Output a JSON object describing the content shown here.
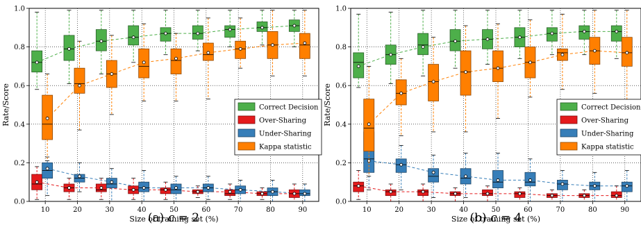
{
  "colors": {
    "correct": "#4daf4a",
    "over": "#e41a1c",
    "under": "#377eb8",
    "kappa": "#ff7f00"
  },
  "chart_data": [
    {
      "type": "box",
      "caption": "(a) c = 2",
      "caption_text": "(a)",
      "caption_var": "c",
      "caption_val": "= 2",
      "xlabel": "Size of training set (%)",
      "ylabel": "Rate/Score",
      "categories": [
        "10",
        "20",
        "30",
        "40",
        "50",
        "60",
        "70",
        "80",
        "90"
      ],
      "yticks": [
        "0.0",
        "0.2",
        "0.4",
        "0.6",
        "0.8",
        "1.0"
      ],
      "ylim": [
        0,
        1
      ],
      "grid": true,
      "legend": "right",
      "series": [
        {
          "key": "correct",
          "name": "Correct Decision",
          "boxes": [
            {
              "q1": 0.67,
              "med": 0.72,
              "q3": 0.78,
              "mean": 0.72,
              "wlo": 0.58,
              "whi": 0.98
            },
            {
              "q1": 0.73,
              "med": 0.79,
              "q3": 0.86,
              "mean": 0.79,
              "wlo": 0.61,
              "whi": 0.99
            },
            {
              "q1": 0.78,
              "med": 0.83,
              "q3": 0.89,
              "mean": 0.83,
              "wlo": 0.66,
              "whi": 0.99
            },
            {
              "q1": 0.81,
              "med": 0.85,
              "q3": 0.91,
              "mean": 0.85,
              "wlo": 0.72,
              "whi": 0.99
            },
            {
              "q1": 0.83,
              "med": 0.87,
              "q3": 0.9,
              "mean": 0.87,
              "wlo": 0.76,
              "whi": 0.99
            },
            {
              "q1": 0.84,
              "med": 0.87,
              "q3": 0.91,
              "mean": 0.87,
              "wlo": 0.78,
              "whi": 0.99
            },
            {
              "q1": 0.85,
              "med": 0.89,
              "q3": 0.91,
              "mean": 0.89,
              "wlo": 0.8,
              "whi": 0.99
            },
            {
              "q1": 0.88,
              "med": 0.9,
              "q3": 0.93,
              "mean": 0.9,
              "wlo": 0.81,
              "whi": 0.99
            },
            {
              "q1": 0.88,
              "med": 0.91,
              "q3": 0.94,
              "mean": 0.91,
              "wlo": 0.8,
              "whi": 0.99
            }
          ]
        },
        {
          "key": "over",
          "name": "Over-Sharing",
          "boxes": [
            {
              "q1": 0.06,
              "med": 0.09,
              "q3": 0.14,
              "mean": 0.1,
              "wlo": 0.01,
              "whi": 0.18
            },
            {
              "q1": 0.05,
              "med": 0.07,
              "q3": 0.09,
              "mean": 0.07,
              "wlo": 0.01,
              "whi": 0.12
            },
            {
              "q1": 0.05,
              "med": 0.06,
              "q3": 0.09,
              "mean": 0.07,
              "wlo": 0.01,
              "whi": 0.12
            },
            {
              "q1": 0.04,
              "med": 0.06,
              "q3": 0.08,
              "mean": 0.06,
              "wlo": 0.01,
              "whi": 0.12
            },
            {
              "q1": 0.04,
              "med": 0.06,
              "q3": 0.07,
              "mean": 0.06,
              "wlo": 0.01,
              "whi": 0.1
            },
            {
              "q1": 0.04,
              "med": 0.05,
              "q3": 0.06,
              "mean": 0.05,
              "wlo": 0.02,
              "whi": 0.08
            },
            {
              "q1": 0.03,
              "med": 0.04,
              "q3": 0.06,
              "mean": 0.05,
              "wlo": 0.01,
              "whi": 0.09
            },
            {
              "q1": 0.03,
              "med": 0.04,
              "q3": 0.05,
              "mean": 0.04,
              "wlo": 0.01,
              "whi": 0.07
            },
            {
              "q1": 0.02,
              "med": 0.04,
              "q3": 0.06,
              "mean": 0.04,
              "wlo": 0.0,
              "whi": 0.09
            }
          ]
        },
        {
          "key": "under",
          "name": "Under-Sharing",
          "boxes": [
            {
              "q1": 0.12,
              "med": 0.16,
              "q3": 0.2,
              "mean": 0.17,
              "wlo": 0.03,
              "whi": 0.23
            },
            {
              "q1": 0.1,
              "med": 0.12,
              "q3": 0.14,
              "mean": 0.13,
              "wlo": 0.05,
              "whi": 0.2
            },
            {
              "q1": 0.07,
              "med": 0.09,
              "q3": 0.12,
              "mean": 0.1,
              "wlo": 0.0,
              "whi": 0.17
            },
            {
              "q1": 0.05,
              "med": 0.07,
              "q3": 0.1,
              "mean": 0.07,
              "wlo": 0.0,
              "whi": 0.16
            },
            {
              "q1": 0.04,
              "med": 0.06,
              "q3": 0.09,
              "mean": 0.07,
              "wlo": 0.0,
              "whi": 0.13
            },
            {
              "q1": 0.05,
              "med": 0.07,
              "q3": 0.09,
              "mean": 0.07,
              "wlo": 0.01,
              "whi": 0.13
            },
            {
              "q1": 0.04,
              "med": 0.06,
              "q3": 0.08,
              "mean": 0.06,
              "wlo": 0.0,
              "whi": 0.11
            },
            {
              "q1": 0.03,
              "med": 0.05,
              "q3": 0.07,
              "mean": 0.05,
              "wlo": 0.0,
              "whi": 0.11
            },
            {
              "q1": 0.03,
              "med": 0.04,
              "q3": 0.06,
              "mean": 0.04,
              "wlo": 0.0,
              "whi": 0.09
            }
          ]
        },
        {
          "key": "kappa",
          "name": "Kappa statistic",
          "boxes": [
            {
              "q1": 0.32,
              "med": 0.4,
              "q3": 0.55,
              "mean": 0.43,
              "wlo": 0.21,
              "whi": 0.66
            },
            {
              "q1": 0.56,
              "med": 0.61,
              "q3": 0.69,
              "mean": 0.6,
              "wlo": 0.37,
              "whi": 0.83
            },
            {
              "q1": 0.59,
              "med": 0.66,
              "q3": 0.73,
              "mean": 0.66,
              "wlo": 0.45,
              "whi": 0.86
            },
            {
              "q1": 0.64,
              "med": 0.7,
              "q3": 0.79,
              "mean": 0.72,
              "wlo": 0.52,
              "whi": 0.92
            },
            {
              "q1": 0.66,
              "med": 0.73,
              "q3": 0.79,
              "mean": 0.74,
              "wlo": 0.52,
              "whi": 0.87
            },
            {
              "q1": 0.73,
              "med": 0.76,
              "q3": 0.82,
              "mean": 0.77,
              "wlo": 0.53,
              "whi": 0.95
            },
            {
              "q1": 0.74,
              "med": 0.79,
              "q3": 0.83,
              "mean": 0.79,
              "wlo": 0.69,
              "whi": 0.95
            },
            {
              "q1": 0.74,
              "med": 0.81,
              "q3": 0.88,
              "mean": 0.81,
              "wlo": 0.65,
              "whi": 0.99
            },
            {
              "q1": 0.74,
              "med": 0.81,
              "q3": 0.87,
              "mean": 0.82,
              "wlo": 0.65,
              "whi": 0.99
            }
          ]
        }
      ]
    },
    {
      "type": "box",
      "caption": "(b) c = 4",
      "caption_text": "(b)",
      "caption_var": "c",
      "caption_val": "= 4",
      "xlabel": "Size of training set (%)",
      "ylabel": "Rate/Score",
      "categories": [
        "10",
        "20",
        "30",
        "40",
        "50",
        "60",
        "70",
        "80",
        "90"
      ],
      "yticks": [
        "0.0",
        "0.2",
        "0.4",
        "0.6",
        "0.8",
        "1.0"
      ],
      "ylim": [
        0,
        1
      ],
      "grid": true,
      "legend": "right",
      "series": [
        {
          "key": "correct",
          "name": "Correct Decision",
          "boxes": [
            {
              "q1": 0.64,
              "med": 0.72,
              "q3": 0.77,
              "mean": 0.7,
              "wlo": 0.59,
              "whi": 0.97
            },
            {
              "q1": 0.71,
              "med": 0.76,
              "q3": 0.81,
              "mean": 0.76,
              "wlo": 0.61,
              "whi": 0.98
            },
            {
              "q1": 0.76,
              "med": 0.81,
              "q3": 0.87,
              "mean": 0.8,
              "wlo": 0.65,
              "whi": 0.99
            },
            {
              "q1": 0.78,
              "med": 0.83,
              "q3": 0.89,
              "mean": 0.83,
              "wlo": 0.69,
              "whi": 0.99
            },
            {
              "q1": 0.79,
              "med": 0.84,
              "q3": 0.89,
              "mean": 0.84,
              "wlo": 0.71,
              "whi": 0.99
            },
            {
              "q1": 0.8,
              "med": 0.85,
              "q3": 0.9,
              "mean": 0.85,
              "wlo": 0.74,
              "whi": 0.99
            },
            {
              "q1": 0.83,
              "med": 0.87,
              "q3": 0.9,
              "mean": 0.87,
              "wlo": 0.76,
              "whi": 0.99
            },
            {
              "q1": 0.84,
              "med": 0.88,
              "q3": 0.91,
              "mean": 0.88,
              "wlo": 0.76,
              "whi": 0.99
            },
            {
              "q1": 0.83,
              "med": 0.88,
              "q3": 0.91,
              "mean": 0.88,
              "wlo": 0.74,
              "whi": 0.99
            }
          ]
        },
        {
          "key": "over",
          "name": "Over-Sharing",
          "boxes": [
            {
              "q1": 0.05,
              "med": 0.08,
              "q3": 0.1,
              "mean": 0.08,
              "wlo": 0.01,
              "whi": 0.16
            },
            {
              "q1": 0.03,
              "med": 0.05,
              "q3": 0.06,
              "mean": 0.05,
              "wlo": 0.0,
              "whi": 0.09
            },
            {
              "q1": 0.03,
              "med": 0.05,
              "q3": 0.06,
              "mean": 0.05,
              "wlo": 0.0,
              "whi": 0.09
            },
            {
              "q1": 0.03,
              "med": 0.04,
              "q3": 0.05,
              "mean": 0.04,
              "wlo": 0.0,
              "whi": 0.07
            },
            {
              "q1": 0.03,
              "med": 0.04,
              "q3": 0.06,
              "mean": 0.04,
              "wlo": 0.0,
              "whi": 0.08
            },
            {
              "q1": 0.02,
              "med": 0.04,
              "q3": 0.05,
              "mean": 0.04,
              "wlo": 0.0,
              "whi": 0.07
            },
            {
              "q1": 0.02,
              "med": 0.03,
              "q3": 0.04,
              "mean": 0.03,
              "wlo": 0.0,
              "whi": 0.06
            },
            {
              "q1": 0.02,
              "med": 0.03,
              "q3": 0.04,
              "mean": 0.03,
              "wlo": 0.0,
              "whi": 0.06
            },
            {
              "q1": 0.02,
              "med": 0.03,
              "q3": 0.05,
              "mean": 0.03,
              "wlo": 0.0,
              "whi": 0.08
            }
          ]
        },
        {
          "key": "under",
          "name": "Under-Sharing",
          "boxes": [
            {
              "q1": 0.15,
              "med": 0.22,
              "q3": 0.36,
              "mean": 0.21,
              "wlo": 0.06,
              "whi": 0.43
            },
            {
              "q1": 0.15,
              "med": 0.19,
              "q3": 0.22,
              "mean": 0.19,
              "wlo": 0.06,
              "whi": 0.29
            },
            {
              "q1": 0.1,
              "med": 0.13,
              "q3": 0.17,
              "mean": 0.15,
              "wlo": 0.02,
              "whi": 0.24
            },
            {
              "q1": 0.09,
              "med": 0.12,
              "q3": 0.17,
              "mean": 0.13,
              "wlo": 0.02,
              "whi": 0.25
            },
            {
              "q1": 0.07,
              "med": 0.1,
              "q3": 0.16,
              "mean": 0.11,
              "wlo": 0.0,
              "whi": 0.25
            },
            {
              "q1": 0.08,
              "med": 0.1,
              "q3": 0.15,
              "mean": 0.11,
              "wlo": 0.0,
              "whi": 0.22
            },
            {
              "q1": 0.06,
              "med": 0.09,
              "q3": 0.11,
              "mean": 0.09,
              "wlo": 0.0,
              "whi": 0.16
            },
            {
              "q1": 0.06,
              "med": 0.08,
              "q3": 0.1,
              "mean": 0.08,
              "wlo": 0.0,
              "whi": 0.15
            },
            {
              "q1": 0.05,
              "med": 0.08,
              "q3": 0.1,
              "mean": 0.08,
              "wlo": 0.0,
              "whi": 0.16
            }
          ]
        },
        {
          "key": "kappa",
          "name": "Kappa statistic",
          "boxes": [
            {
              "q1": 0.26,
              "med": 0.38,
              "q3": 0.53,
              "mean": 0.4,
              "wlo": 0.13,
              "whi": 0.7
            },
            {
              "q1": 0.5,
              "med": 0.56,
              "q3": 0.63,
              "mean": 0.56,
              "wlo": 0.34,
              "whi": 0.74
            },
            {
              "q1": 0.52,
              "med": 0.62,
              "q3": 0.71,
              "mean": 0.62,
              "wlo": 0.36,
              "whi": 0.85
            },
            {
              "q1": 0.55,
              "med": 0.67,
              "q3": 0.78,
              "mean": 0.67,
              "wlo": 0.36,
              "whi": 0.91
            },
            {
              "q1": 0.62,
              "med": 0.69,
              "q3": 0.78,
              "mean": 0.69,
              "wlo": 0.43,
              "whi": 0.92
            },
            {
              "q1": 0.64,
              "med": 0.72,
              "q3": 0.8,
              "mean": 0.72,
              "wlo": 0.54,
              "whi": 0.94
            },
            {
              "q1": 0.73,
              "med": 0.77,
              "q3": 0.79,
              "mean": 0.76,
              "wlo": 0.58,
              "whi": 0.97
            },
            {
              "q1": 0.71,
              "med": 0.78,
              "q3": 0.85,
              "mean": 0.78,
              "wlo": 0.56,
              "whi": 0.99
            },
            {
              "q1": 0.7,
              "med": 0.77,
              "q3": 0.85,
              "mean": 0.77,
              "wlo": 0.51,
              "whi": 0.99
            }
          ]
        }
      ]
    }
  ]
}
